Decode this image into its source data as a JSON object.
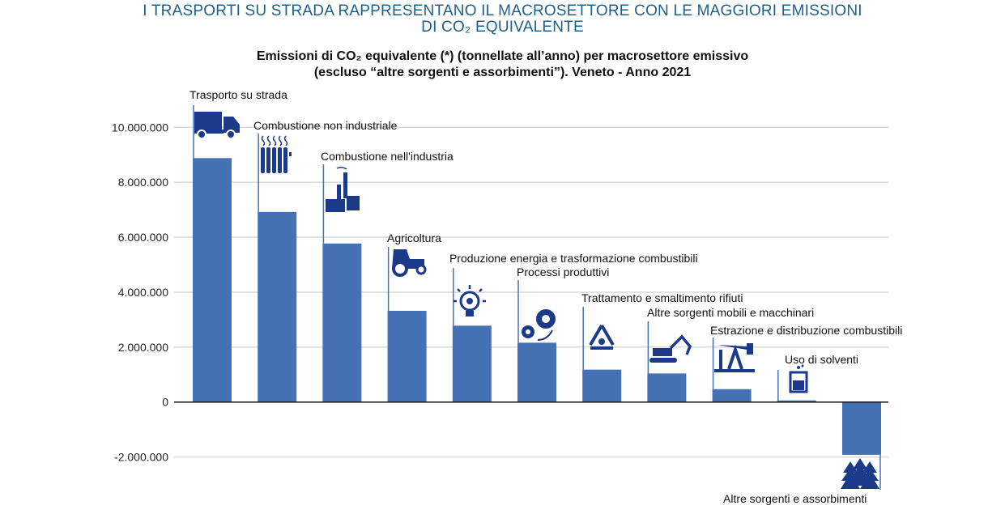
{
  "title_line1": "I TRASPORTI SU STRADA RAPPRESENTANO IL MACROSETTORE CON LE MAGGIORI EMISSIONI",
  "title_line2": "DI CO₂ EQUIVALENTE",
  "chart_data": {
    "type": "bar",
    "title": "Emissioni di CO₂ equivalente (*) (tonnellate all’anno) per macrosettore emissivo",
    "subtitle": "(escluso “altre sorgenti e assorbimenti”). Veneto - Anno 2021",
    "xlabel": "",
    "ylabel": "",
    "ylim": [
      -2000000,
      10000000
    ],
    "grid": true,
    "yticks": [
      {
        "value": 10000000,
        "label": "10.000.000"
      },
      {
        "value": 8000000,
        "label": "8.000.000"
      },
      {
        "value": 6000000,
        "label": "6.000.000"
      },
      {
        "value": 4000000,
        "label": "4.000.000"
      },
      {
        "value": 2000000,
        "label": "2.000.000"
      },
      {
        "value": 0,
        "label": "0"
      },
      {
        "value": -2000000,
        "label": "-2.000.000"
      }
    ],
    "categories": [
      "Trasporto su strada",
      "Combustione non industriale",
      "Combustione nell'industria",
      "Agricoltura",
      "Produzione energia e trasformazione combustibili",
      "Processi produttivi",
      "Trattamento e smaltimento rifiuti",
      "Altre sorgenti mobili e macchinari",
      "Estrazione e distribuzione combustibili",
      "Uso di solventi",
      "Altre sorgenti e assorbimenti"
    ],
    "values": [
      8880000,
      6920000,
      5770000,
      3320000,
      2780000,
      2160000,
      1180000,
      1040000,
      470000,
      60000,
      -1920000
    ],
    "icons": [
      "truck-icon",
      "radiator-icon",
      "factory-icon",
      "tractor-icon",
      "lightbulb-gear-icon",
      "gears-icon",
      "recycle-icon",
      "excavator-icon",
      "oil-pump-icon",
      "beaker-icon",
      "trees-icon"
    ]
  },
  "colors": {
    "bar": "#4472b4",
    "icon": "#1b3a8a",
    "title": "#1f5f8b",
    "grid": "#d9d9d9"
  }
}
